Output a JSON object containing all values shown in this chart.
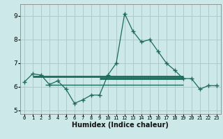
{
  "x": [
    0,
    1,
    2,
    3,
    4,
    5,
    6,
    7,
    8,
    9,
    10,
    11,
    12,
    13,
    14,
    15,
    16,
    17,
    18,
    19,
    20,
    21,
    22,
    23
  ],
  "y_line": [
    6.2,
    6.55,
    6.5,
    6.1,
    6.25,
    5.9,
    5.3,
    5.45,
    5.65,
    5.65,
    6.5,
    7.0,
    9.1,
    8.35,
    7.9,
    8.0,
    7.5,
    7.0,
    6.7,
    6.35,
    6.35,
    5.9,
    6.05,
    6.05
  ],
  "hline1_y": 6.45,
  "hline1_x1": 1.0,
  "hline1_x2": 19.0,
  "hline2_y": 6.35,
  "hline2_x1": 9.0,
  "hline2_x2": 19.0,
  "hline3_y": 6.1,
  "hline3_x1": 2.5,
  "hline3_x2": 19.0,
  "background_color": "#cce8e8",
  "grid_color": "#aacccc",
  "line_color": "#1a6b5a",
  "xlabel": "Humidex (Indice chaleur)",
  "ylim": [
    4.85,
    9.5
  ],
  "xlim": [
    -0.5,
    23.5
  ],
  "yticks": [
    5,
    6,
    7,
    8,
    9
  ],
  "xtick_labels": [
    "0",
    "1",
    "2",
    "3",
    "4",
    "5",
    "6",
    "7",
    "8",
    "9",
    "10",
    "11",
    "12",
    "13",
    "14",
    "15",
    "16",
    "17",
    "18",
    "19",
    "20",
    "21",
    "22",
    "23"
  ],
  "xtick_positions": [
    0,
    1,
    2,
    3,
    4,
    5,
    6,
    7,
    8,
    9,
    10,
    11,
    12,
    13,
    14,
    15,
    16,
    17,
    18,
    19,
    20,
    21,
    22,
    23
  ]
}
